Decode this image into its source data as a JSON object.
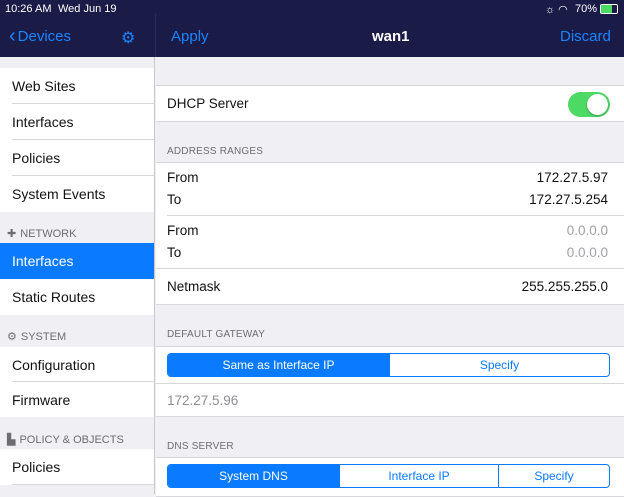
{
  "status": {
    "time": "10:26 AM",
    "date": "Wed Jun 19",
    "battery": "70%"
  },
  "sidebar": {
    "back_label": "Devices",
    "items_top": [
      "Web Sites",
      "Interfaces",
      "Policies",
      "System Events"
    ],
    "sections": [
      {
        "title": "NETWORK",
        "items": [
          "Interfaces",
          "Static Routes"
        ]
      },
      {
        "title": "SYSTEM",
        "items": [
          "Configuration",
          "Firmware"
        ]
      },
      {
        "title": "POLICY & OBJECTS",
        "items": [
          "Policies"
        ]
      }
    ]
  },
  "header": {
    "apply": "Apply",
    "title": "wan1",
    "discard": "Discard"
  },
  "dhcp": {
    "label": "DHCP Server",
    "enabled": true
  },
  "ranges": {
    "title": "ADDRESS RANGES",
    "from_label": "From",
    "to_label": "To",
    "r1": {
      "from": "172.27.5.97",
      "to": "172.27.5.254"
    },
    "r2": {
      "from": "0.0.0.0",
      "to": "0.0.0.0"
    },
    "netmask_label": "Netmask",
    "netmask": "255.255.255.0"
  },
  "gateway": {
    "title": "DEFAULT GATEWAY",
    "options": [
      "Same as Interface IP",
      "Specify"
    ],
    "selected": "Same as Interface IP",
    "value": "172.27.5.96"
  },
  "dns": {
    "title": "DNS SERVER",
    "options": [
      "System DNS",
      "Interface IP",
      "Specify"
    ],
    "selected": "System DNS"
  }
}
